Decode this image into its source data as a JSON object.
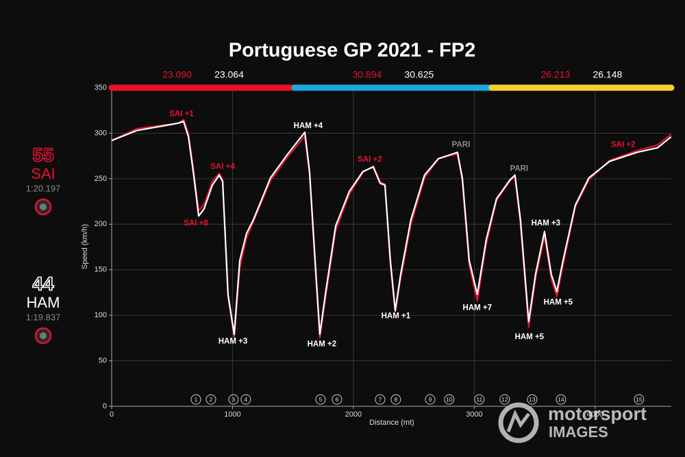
{
  "chart_data": {
    "type": "line",
    "title": "Portuguese GP 2021 - FP2",
    "x_label": "Distance (mt)",
    "y_label": "Speed (km/h)",
    "xlim": [
      0,
      4630
    ],
    "xticks": [
      0,
      1000,
      2000,
      3000,
      4000
    ],
    "ylim": [
      0,
      350
    ],
    "yticks": [
      0,
      50,
      100,
      150,
      200,
      250,
      300,
      350
    ],
    "grid": true,
    "x": [
      0,
      210,
      550,
      595,
      635,
      675,
      720,
      765,
      833,
      890,
      918,
      963,
      1014,
      1060,
      1116,
      1173,
      1314,
      1456,
      1598,
      1637,
      1683,
      1722,
      1768,
      1853,
      1966,
      2079,
      2164,
      2221,
      2261,
      2306,
      2346,
      2391,
      2476,
      2589,
      2703,
      2816,
      2861,
      2901,
      2958,
      3025,
      3099,
      3184,
      3297,
      3337,
      3382,
      3450,
      3507,
      3581,
      3637,
      3683,
      3734,
      3836,
      3949,
      4119,
      4346,
      4516,
      4629
    ],
    "series": [
      {
        "name": "SAI",
        "color": "#e8112d",
        "values": [
          292,
          305,
          311,
          315,
          300,
          262,
          215,
          222,
          247,
          256,
          249,
          120,
          76,
          152,
          185,
          203,
          248,
          274,
          297,
          255,
          155,
          75,
          118,
          193,
          233,
          257,
          264,
          247,
          244,
          155,
          104,
          140,
          200,
          251,
          272,
          276,
          277,
          248,
          155,
          116,
          178,
          226,
          248,
          252,
          200,
          87,
          140,
          187,
          140,
          121,
          155,
          219,
          249,
          270,
          281,
          287,
          299
        ]
      },
      {
        "name": "HAM",
        "color": "#ffffff",
        "values": [
          292,
          303,
          311,
          313,
          296,
          258,
          209,
          217,
          243,
          254,
          247,
          123,
          79,
          160,
          190,
          205,
          251,
          277,
          301,
          258,
          160,
          79,
          123,
          198,
          236,
          258,
          263,
          245,
          243,
          160,
          105,
          145,
          205,
          254,
          272,
          277,
          279,
          251,
          160,
          123,
          183,
          228,
          249,
          254,
          205,
          93,
          145,
          192,
          145,
          126,
          160,
          221,
          251,
          269,
          279,
          284,
          296
        ]
      }
    ],
    "sectors": [
      {
        "end": 1513,
        "color": "#e8112d",
        "times": [
          "23.090",
          "23.064"
        ]
      },
      {
        "end": 3144,
        "color": "#1ba9e0",
        "times": [
          "30.894",
          "30.625"
        ]
      },
      {
        "end": 4630,
        "color": "#f5d130",
        "times": [
          "26.213",
          "26.148"
        ]
      }
    ],
    "annotations": [
      {
        "text": "SAI +1",
        "x": 578,
        "y": 321,
        "color": "#e8112d"
      },
      {
        "text": "SAI +4",
        "x": 918,
        "y": 263,
        "color": "#e8112d"
      },
      {
        "text": "SAI +8",
        "x": 697,
        "y": 201,
        "color": "#e8112d"
      },
      {
        "text": "HAM +3",
        "x": 1003,
        "y": 71,
        "color": "#ffffff"
      },
      {
        "text": "HAM +4",
        "x": 1626,
        "y": 308,
        "color": "#ffffff"
      },
      {
        "text": "HAM +2",
        "x": 1739,
        "y": 68,
        "color": "#ffffff"
      },
      {
        "text": "SAI +2",
        "x": 2136,
        "y": 271,
        "color": "#e8112d"
      },
      {
        "text": "HAM +1",
        "x": 2351,
        "y": 99,
        "color": "#ffffff"
      },
      {
        "text": "PARI",
        "x": 2890,
        "y": 287,
        "color": "#8a8a8a"
      },
      {
        "text": "HAM +7",
        "x": 3025,
        "y": 108,
        "color": "#ffffff"
      },
      {
        "text": "PARI",
        "x": 3371,
        "y": 261,
        "color": "#8a8a8a"
      },
      {
        "text": "HAM +3",
        "x": 3592,
        "y": 201,
        "color": "#ffffff"
      },
      {
        "text": "HAM +5",
        "x": 3456,
        "y": 76,
        "color": "#ffffff"
      },
      {
        "text": "HAM +5",
        "x": 3694,
        "y": 114,
        "color": "#ffffff"
      },
      {
        "text": "SAI +2",
        "x": 4232,
        "y": 287,
        "color": "#e8112d"
      }
    ],
    "turns": [
      {
        "label": "1",
        "x": 697
      },
      {
        "label": "2",
        "x": 822
      },
      {
        "label": "3",
        "x": 1008
      },
      {
        "label": "4",
        "x": 1110
      },
      {
        "label": "5",
        "x": 1728
      },
      {
        "label": "6",
        "x": 1864
      },
      {
        "label": "7",
        "x": 2221
      },
      {
        "label": "8",
        "x": 2351
      },
      {
        "label": "9",
        "x": 2635
      },
      {
        "label": "10",
        "x": 2793
      },
      {
        "label": "11",
        "x": 3042
      },
      {
        "label": "12",
        "x": 3252
      },
      {
        "label": "13",
        "x": 3479
      },
      {
        "label": "14",
        "x": 3717
      },
      {
        "label": "15",
        "x": 4363
      }
    ],
    "drivers": [
      {
        "number": "55",
        "name": "SAI",
        "lap": "1:20.197",
        "color": "#e8112d"
      },
      {
        "number": "44",
        "name": "HAM",
        "lap": "1:19.837",
        "color": "#ffffff"
      }
    ]
  },
  "watermark": {
    "brand": "motorsport",
    "sub": "IMAGES"
  }
}
